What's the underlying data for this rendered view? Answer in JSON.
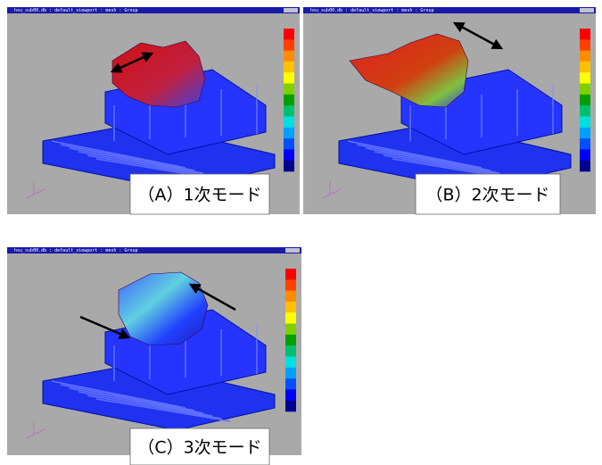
{
  "panels": [
    {
      "window_title": "hsu_sub00.db : default_viewport : mesh : Group",
      "caption": "（A）1次モード"
    },
    {
      "window_title": "hsu_sub00.db : default_viewport : mesh : Group",
      "caption": "（B）2次モード"
    },
    {
      "window_title": "hsu_sub00.db : default_viewport : mesh : Group",
      "caption": "（C）3次モード"
    }
  ]
}
